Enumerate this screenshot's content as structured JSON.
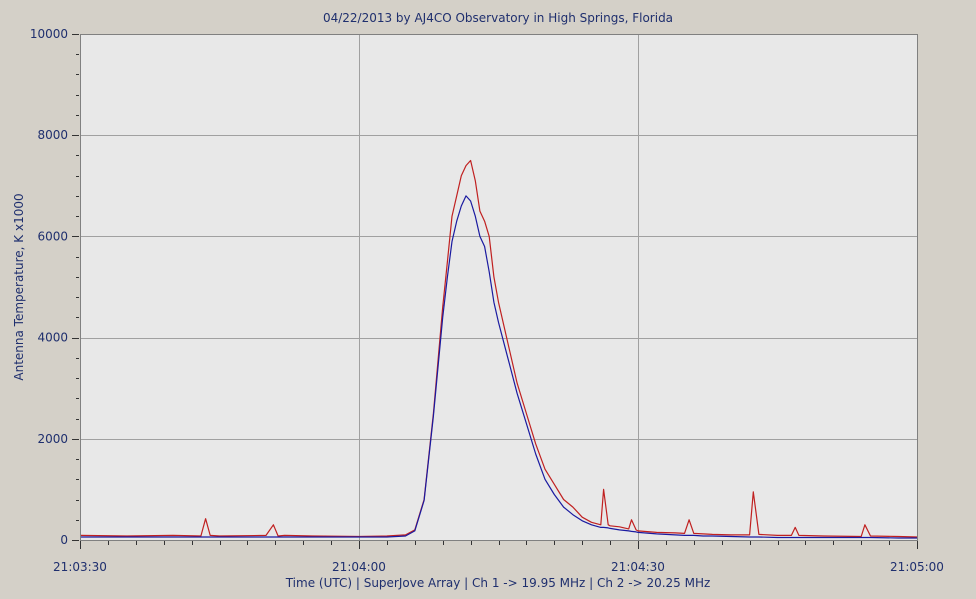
{
  "chart_data": {
    "type": "line",
    "title": "04/22/2013  by  AJ4CO Observatory  in  High Springs, Florida",
    "xlabel": "Time (UTC)  |  SuperJove Array  |  Ch 1 -> 19.95 MHz  |  Ch 2 -> 20.25 MHz",
    "ylabel": "Antenna Temperature, K x1000",
    "x_ticks": [
      "21:03:30",
      "21:04:00",
      "21:04:30",
      "21:05:00"
    ],
    "x_tick_seconds": [
      0,
      30,
      60,
      90
    ],
    "xlim": [
      0,
      90
    ],
    "ylim": [
      0,
      10000
    ],
    "y_ticks": [
      0,
      2000,
      4000,
      6000,
      8000,
      10000
    ],
    "grid": true,
    "colors": {
      "background": "#d4d0c8",
      "plot_background": "#e8e8e8",
      "grid": "#a0a0a0",
      "text": "#1f2f6e",
      "ch1": "#1a1aa0",
      "ch2": "#c02020"
    },
    "series": [
      {
        "key": "ch2",
        "x": [
          0,
          5,
          10,
          13,
          13.5,
          14,
          15,
          20,
          20.8,
          21.3,
          22,
          25,
          30,
          33,
          35,
          36,
          37,
          38,
          39,
          39.5,
          40,
          40.5,
          41,
          41.5,
          42,
          42.5,
          43,
          43.5,
          44,
          44.5,
          45,
          46,
          47,
          48,
          49,
          50,
          51,
          52,
          53,
          54,
          55,
          56,
          56.3,
          56.8,
          57,
          58,
          59,
          59.3,
          59.8,
          60,
          62,
          64,
          65,
          65.5,
          66,
          67,
          68,
          70,
          72,
          72.4,
          73,
          75,
          76.5,
          76.9,
          77.3,
          80,
          84,
          84.4,
          85,
          88,
          90
        ],
        "y": [
          90,
          80,
          90,
          80,
          420,
          90,
          80,
          90,
          300,
          80,
          90,
          80,
          70,
          80,
          100,
          200,
          800,
          2500,
          4600,
          5500,
          6400,
          6800,
          7200,
          7400,
          7500,
          7100,
          6500,
          6300,
          6000,
          5200,
          4700,
          3900,
          3100,
          2500,
          1900,
          1400,
          1100,
          800,
          650,
          450,
          350,
          300,
          1000,
          300,
          280,
          260,
          220,
          400,
          200,
          180,
          150,
          140,
          130,
          400,
          130,
          120,
          110,
          100,
          100,
          950,
          110,
          90,
          90,
          250,
          90,
          80,
          70,
          300,
          80,
          70,
          60
        ]
      },
      {
        "key": "ch1",
        "x": [
          0,
          5,
          10,
          13,
          13.5,
          14,
          15,
          20,
          20.8,
          21.3,
          22,
          25,
          30,
          33,
          35,
          36,
          37,
          38,
          39,
          39.5,
          40,
          40.5,
          41,
          41.5,
          42,
          42.5,
          43,
          43.5,
          44,
          44.5,
          45,
          46,
          47,
          48,
          49,
          50,
          51,
          52,
          53,
          54,
          55,
          56,
          56.3,
          56.8,
          57,
          58,
          59,
          59.3,
          59.8,
          60,
          62,
          64,
          65,
          65.5,
          66,
          67,
          68,
          70,
          72,
          72.4,
          73,
          75,
          76.5,
          76.9,
          77.3,
          80,
          84,
          84.4,
          85,
          88,
          90
        ],
        "y": [
          60,
          60,
          60,
          60,
          60,
          60,
          60,
          60,
          60,
          60,
          60,
          60,
          60,
          60,
          80,
          180,
          780,
          2450,
          4400,
          5200,
          5900,
          6300,
          6600,
          6800,
          6700,
          6400,
          6000,
          5800,
          5300,
          4700,
          4300,
          3600,
          2900,
          2300,
          1700,
          1200,
          900,
          650,
          500,
          380,
          300,
          250,
          250,
          240,
          230,
          200,
          180,
          170,
          160,
          150,
          120,
          100,
          90,
          90,
          90,
          80,
          80,
          70,
          60,
          60,
          60,
          50,
          50,
          50,
          50,
          50,
          50,
          50,
          50,
          40,
          40
        ]
      }
    ]
  }
}
